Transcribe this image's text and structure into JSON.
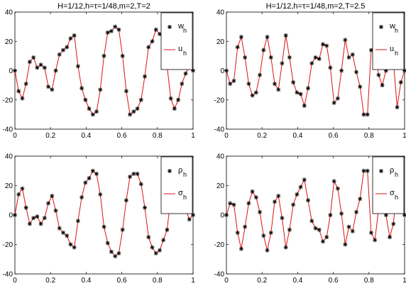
{
  "chart_data": [
    {
      "type": "line",
      "title": "H=1/12,h=τ=1/48,m=2,T=2",
      "xlabel": "",
      "ylabel": "",
      "xlim": [
        0,
        1
      ],
      "ylim": [
        -40,
        40
      ],
      "xticks": [
        0,
        0.2,
        0.4,
        0.6,
        0.8,
        1
      ],
      "yticks": [
        -40,
        -20,
        0,
        20,
        40
      ],
      "x_tick_labels": [
        "0",
        "0.2",
        "0.4",
        "0.6",
        "0.8",
        "1"
      ],
      "y_tick_labels": [
        "-40",
        "-20",
        "0",
        "20",
        "40"
      ],
      "legend": {
        "position": "top-right"
      },
      "grid": false,
      "x": [
        0,
        0.0208,
        0.0417,
        0.0625,
        0.0833,
        0.1042,
        0.125,
        0.1458,
        0.1667,
        0.1875,
        0.2083,
        0.2292,
        0.25,
        0.2708,
        0.2917,
        0.3125,
        0.3333,
        0.3542,
        0.375,
        0.3958,
        0.4167,
        0.4375,
        0.4583,
        0.4792,
        0.5,
        0.5208,
        0.5417,
        0.5625,
        0.5833,
        0.6042,
        0.625,
        0.6458,
        0.6667,
        0.6875,
        0.7083,
        0.7292,
        0.75,
        0.7708,
        0.7917,
        0.8125,
        0.8333,
        0.8542,
        0.875,
        0.8958,
        0.9167,
        0.9375,
        0.9583,
        0.9792,
        1.0
      ],
      "series": [
        {
          "name": "w",
          "name_sub": "h",
          "style": "star",
          "color": "#000000",
          "values": [
            0,
            -14,
            -19,
            -9,
            6,
            9,
            2,
            4,
            2,
            -11,
            -13,
            0,
            11,
            14,
            16,
            22,
            24,
            3,
            -12,
            -20,
            -26,
            -30,
            -28,
            -13,
            10,
            26,
            27,
            30,
            28,
            10,
            -14,
            -30,
            -28,
            -26,
            -20,
            -4,
            16,
            20,
            28,
            25,
            22,
            3,
            -19,
            -26,
            -20,
            -9,
            -2,
            3,
            0
          ]
        },
        {
          "name": "u",
          "name_sub": "h",
          "style": "line",
          "color": "#dd1111",
          "values": [
            0,
            -14,
            -19,
            -9,
            6,
            9,
            2,
            4,
            2,
            -11,
            -13,
            0,
            11,
            14,
            16,
            22,
            24,
            3,
            -12,
            -20,
            -26,
            -30,
            -28,
            -13,
            10,
            26,
            27,
            30,
            28,
            10,
            -14,
            -30,
            -28,
            -26,
            -20,
            -4,
            16,
            20,
            28,
            25,
            22,
            3,
            -19,
            -26,
            -20,
            -9,
            -2,
            3,
            0
          ]
        }
      ]
    },
    {
      "type": "line",
      "title": "H=1/12,h=τ=1/48,m=2,T=2.5",
      "xlabel": "",
      "ylabel": "",
      "xlim": [
        0,
        1
      ],
      "ylim": [
        -40,
        40
      ],
      "xticks": [
        0,
        0.2,
        0.4,
        0.6,
        0.8,
        1
      ],
      "yticks": [
        -40,
        -20,
        0,
        20,
        40
      ],
      "x_tick_labels": [
        "0",
        "0.2",
        "0.4",
        "0.6",
        "0.8",
        "1"
      ],
      "y_tick_labels": [
        "-40",
        "-20",
        "0",
        "20",
        "40"
      ],
      "legend": {
        "position": "top-right"
      },
      "grid": false,
      "x": [
        0,
        0.0208,
        0.0417,
        0.0625,
        0.0833,
        0.1042,
        0.125,
        0.1458,
        0.1667,
        0.1875,
        0.2083,
        0.2292,
        0.25,
        0.2708,
        0.2917,
        0.3125,
        0.3333,
        0.3542,
        0.375,
        0.3958,
        0.4167,
        0.4375,
        0.4583,
        0.4792,
        0.5,
        0.5208,
        0.5417,
        0.5625,
        0.5833,
        0.6042,
        0.625,
        0.6458,
        0.6667,
        0.6875,
        0.7083,
        0.7292,
        0.75,
        0.7708,
        0.7917,
        0.8125,
        0.8333,
        0.8542,
        0.875,
        0.8958,
        0.9167,
        0.9375,
        0.9583,
        0.9792,
        1.0
      ],
      "series": [
        {
          "name": "w",
          "name_sub": "h",
          "style": "star",
          "color": "#000000",
          "values": [
            0,
            -9,
            -7,
            16,
            23,
            9,
            -9,
            -17,
            -15,
            -3,
            14,
            23,
            9,
            -9,
            -13,
            5,
            24,
            9,
            -8,
            -15,
            -16,
            -24,
            -12,
            5,
            9,
            8,
            18,
            17,
            2,
            -22,
            -19,
            0,
            21,
            9,
            11,
            -1,
            -11,
            -30,
            -30,
            14,
            17,
            -3,
            -10,
            0,
            17,
            6,
            -25,
            -8,
            0
          ]
        },
        {
          "name": "u",
          "name_sub": "h",
          "style": "line",
          "color": "#dd1111",
          "values": [
            0,
            -9,
            -7,
            16,
            23,
            9,
            -9,
            -17,
            -15,
            -3,
            14,
            23,
            9,
            -9,
            -13,
            5,
            24,
            9,
            -8,
            -15,
            -16,
            -24,
            -12,
            5,
            9,
            8,
            18,
            17,
            2,
            -22,
            -19,
            0,
            21,
            9,
            11,
            -1,
            -11,
            -30,
            -30,
            14,
            17,
            -3,
            -10,
            0,
            17,
            6,
            -25,
            -8,
            0
          ]
        }
      ]
    },
    {
      "type": "line",
      "title": "",
      "xlabel": "",
      "ylabel": "",
      "xlim": [
        0,
        1
      ],
      "ylim": [
        -40,
        40
      ],
      "xticks": [
        0,
        0.2,
        0.4,
        0.6,
        0.8,
        1
      ],
      "yticks": [
        -40,
        -20,
        0,
        20,
        40
      ],
      "x_tick_labels": [
        "0",
        "0.2",
        "0.4",
        "0.6",
        "0.8",
        "1"
      ],
      "y_tick_labels": [
        "-40",
        "-20",
        "0",
        "20",
        "40"
      ],
      "legend": {
        "position": "top-right"
      },
      "grid": false,
      "x": [
        0,
        0.0208,
        0.0417,
        0.0625,
        0.0833,
        0.1042,
        0.125,
        0.1458,
        0.1667,
        0.1875,
        0.2083,
        0.2292,
        0.25,
        0.2708,
        0.2917,
        0.3125,
        0.3333,
        0.3542,
        0.375,
        0.3958,
        0.4167,
        0.4375,
        0.4583,
        0.4792,
        0.5,
        0.5208,
        0.5417,
        0.5625,
        0.5833,
        0.6042,
        0.625,
        0.6458,
        0.6667,
        0.6875,
        0.7083,
        0.7292,
        0.75,
        0.7708,
        0.7917,
        0.8125,
        0.8333,
        0.8542,
        0.875,
        0.8958,
        0.9167,
        0.9375,
        0.9583,
        0.9792,
        1.0
      ],
      "series": [
        {
          "name": "ρ",
          "name_sub": "h",
          "style": "star",
          "color": "#000000",
          "values": [
            0,
            14,
            18,
            5,
            -6,
            -2,
            -1,
            -6,
            -2,
            8,
            13,
            3,
            -9,
            -12,
            -14,
            -20,
            -22,
            -4,
            12,
            22,
            25,
            30,
            28,
            14,
            -8,
            -19,
            -25,
            -28,
            -26,
            -10,
            10,
            26,
            28,
            28,
            21,
            5,
            -15,
            -22,
            -26,
            -24,
            -17,
            -10,
            12,
            24,
            22,
            8,
            4,
            -3,
            0
          ]
        },
        {
          "name": "σ",
          "name_sub": "h",
          "style": "line",
          "color": "#dd1111",
          "values": [
            0,
            14,
            18,
            5,
            -6,
            -2,
            -1,
            -6,
            -2,
            8,
            13,
            3,
            -9,
            -12,
            -14,
            -20,
            -22,
            -4,
            12,
            22,
            25,
            30,
            28,
            14,
            -8,
            -19,
            -25,
            -28,
            -26,
            -10,
            10,
            26,
            28,
            28,
            21,
            5,
            -15,
            -22,
            -26,
            -24,
            -17,
            -10,
            12,
            24,
            22,
            8,
            4,
            -3,
            0
          ]
        }
      ]
    },
    {
      "type": "line",
      "title": "",
      "xlabel": "",
      "ylabel": "",
      "xlim": [
        0,
        1
      ],
      "ylim": [
        -40,
        40
      ],
      "xticks": [
        0,
        0.2,
        0.4,
        0.6,
        0.8,
        1
      ],
      "yticks": [
        -40,
        -20,
        0,
        20,
        40
      ],
      "x_tick_labels": [
        "0",
        "0.2",
        "0.4",
        "0.6",
        "0.8",
        "1"
      ],
      "y_tick_labels": [
        "-40",
        "-20",
        "0",
        "20",
        "40"
      ],
      "legend": {
        "position": "top-right"
      },
      "grid": false,
      "x": [
        0,
        0.0208,
        0.0417,
        0.0625,
        0.0833,
        0.1042,
        0.125,
        0.1458,
        0.1667,
        0.1875,
        0.2083,
        0.2292,
        0.25,
        0.2708,
        0.2917,
        0.3125,
        0.3333,
        0.3542,
        0.375,
        0.3958,
        0.4167,
        0.4375,
        0.4583,
        0.4792,
        0.5,
        0.5208,
        0.5417,
        0.5625,
        0.5833,
        0.6042,
        0.625,
        0.6458,
        0.6667,
        0.6875,
        0.7083,
        0.7292,
        0.75,
        0.7708,
        0.7917,
        0.8125,
        0.8333,
        0.8542,
        0.875,
        0.8958,
        0.9167,
        0.9375,
        0.9583,
        0.9792,
        1.0
      ],
      "series": [
        {
          "name": "ρ",
          "name_sub": "h",
          "style": "star",
          "color": "#000000",
          "values": [
            0,
            8,
            7,
            -12,
            -23,
            -8,
            8,
            16,
            12,
            2,
            -14,
            -24,
            -12,
            9,
            13,
            -2,
            -22,
            -10,
            7,
            14,
            19,
            24,
            10,
            -4,
            -9,
            -10,
            -18,
            -15,
            0,
            23,
            18,
            1,
            -20,
            -8,
            -11,
            2,
            11,
            30,
            30,
            -12,
            -17,
            4,
            10,
            0,
            -15,
            -6,
            22,
            8,
            0
          ]
        },
        {
          "name": "σ",
          "name_sub": "h",
          "style": "line",
          "color": "#dd1111",
          "values": [
            0,
            8,
            7,
            -12,
            -23,
            -8,
            8,
            16,
            12,
            2,
            -14,
            -24,
            -12,
            9,
            13,
            -2,
            -22,
            -10,
            7,
            14,
            19,
            24,
            10,
            -4,
            -9,
            -10,
            -18,
            -15,
            0,
            23,
            18,
            1,
            -20,
            -8,
            -11,
            2,
            11,
            30,
            30,
            -12,
            -17,
            4,
            10,
            0,
            -15,
            -6,
            22,
            8,
            0
          ]
        }
      ]
    }
  ]
}
